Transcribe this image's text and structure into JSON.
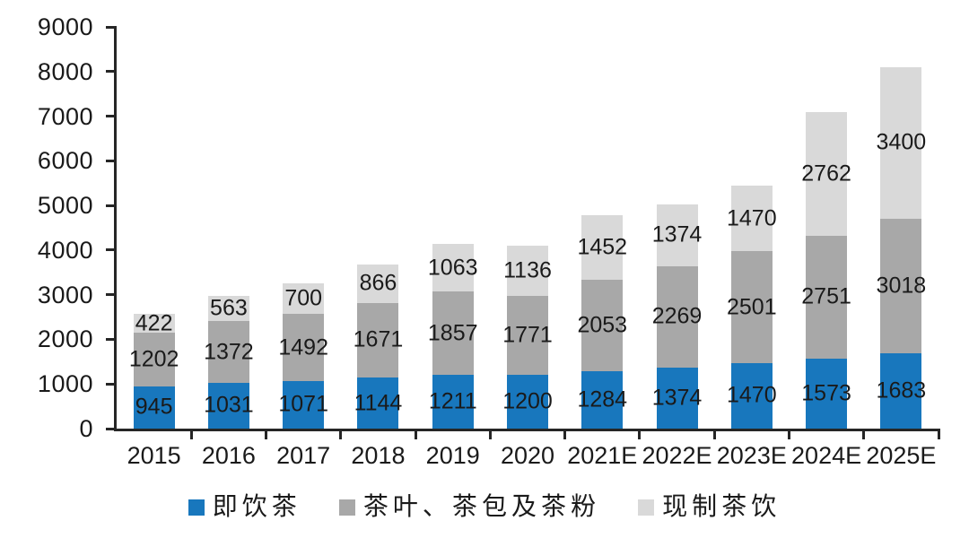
{
  "chart_data": {
    "type": "bar",
    "stacked": true,
    "title": "",
    "xlabel": "",
    "ylabel": "",
    "categories": [
      "2015",
      "2016",
      "2017",
      "2018",
      "2019",
      "2020",
      "2021E",
      "2022E",
      "2023E",
      "2024E",
      "2025E"
    ],
    "series": [
      {
        "name": "即饮茶",
        "color": "#1877BD",
        "values": [
          945,
          1031,
          1071,
          1144,
          1211,
          1200,
          1284,
          1374,
          1470,
          1573,
          1683
        ]
      },
      {
        "name": "茶叶、茶包及茶粉",
        "color": "#A8A8A8",
        "values": [
          1202,
          1372,
          1492,
          1671,
          1857,
          1771,
          2053,
          2269,
          2501,
          2751,
          3018
        ]
      },
      {
        "name": "现制茶饮",
        "color": "#D9D9D9",
        "values": [
          422,
          563,
          700,
          866,
          1063,
          1136,
          1452,
          1374,
          1470,
          2762,
          3400
        ]
      }
    ],
    "ylim": [
      0,
      9000
    ],
    "ytick_step": 1000,
    "ytick_labels": [
      "0",
      "1000",
      "2000",
      "3000",
      "4000",
      "5000",
      "6000",
      "7000",
      "8000",
      "9000"
    ],
    "grid": false,
    "legend_position": "bottom",
    "colors": {
      "axis": "#262626",
      "label_text": "#1A1A1A",
      "background": "#FFFFFF"
    }
  }
}
